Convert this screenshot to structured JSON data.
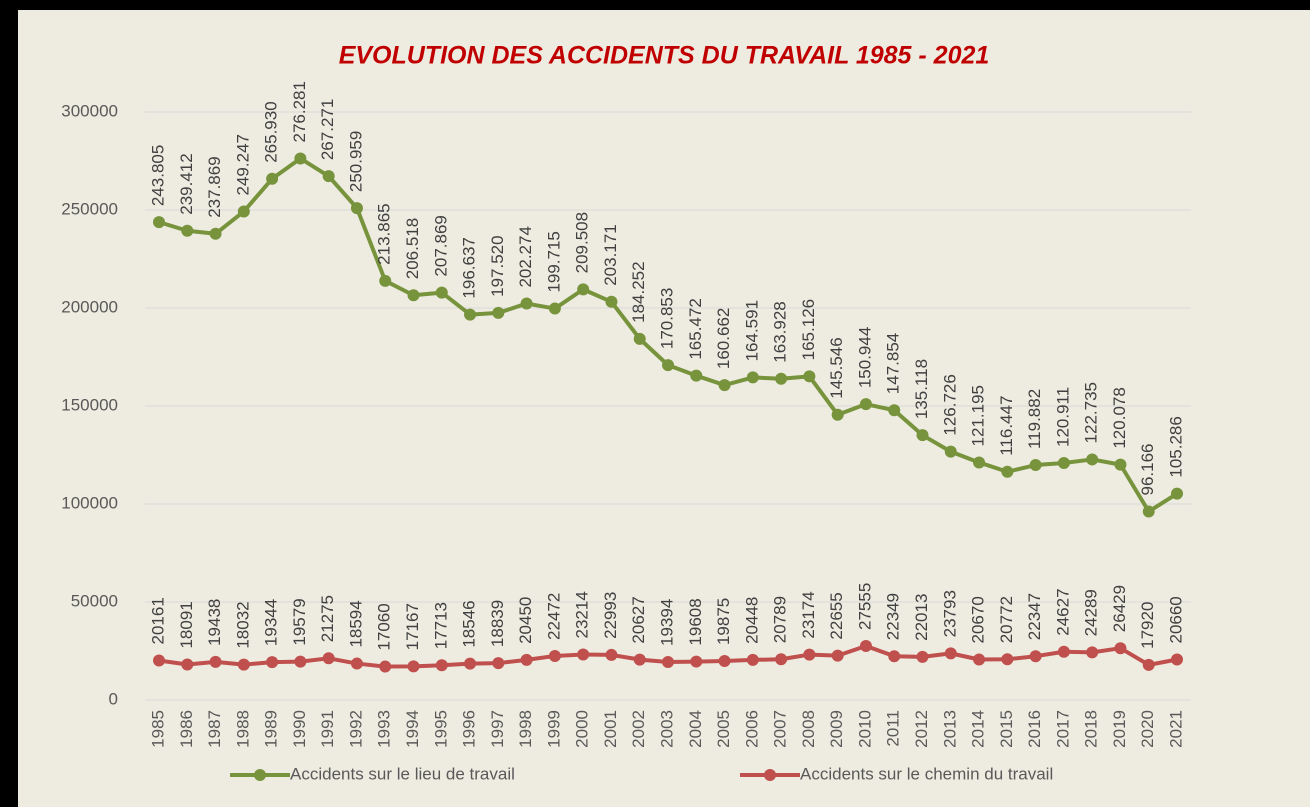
{
  "chart_data": {
    "type": "line",
    "title": "EVOLUTION DES ACCIDENTS DU TRAVAIL 1985 - 2021",
    "categories": [
      "1985",
      "1986",
      "1987",
      "1988",
      "1989",
      "1990",
      "1991",
      "1992",
      "1993",
      "1994",
      "1995",
      "1996",
      "1997",
      "1998",
      "1999",
      "2000",
      "2001",
      "2002",
      "2003",
      "2004",
      "2005",
      "2006",
      "2007",
      "2008",
      "2009",
      "2010",
      "2011",
      "2012",
      "2013",
      "2014",
      "2015",
      "2016",
      "2017",
      "2018",
      "2019",
      "2020",
      "2021"
    ],
    "series": [
      {
        "name": "Accidents sur le lieu de travail",
        "color": "#77933c",
        "values": [
          243805,
          239412,
          237869,
          249247,
          265930,
          276281,
          267271,
          250959,
          213865,
          206518,
          207869,
          196637,
          197520,
          202274,
          199715,
          209508,
          203171,
          184252,
          170853,
          165472,
          160662,
          164591,
          163928,
          165126,
          145546,
          150944,
          147854,
          135118,
          126726,
          121195,
          116447,
          119882,
          120911,
          122735,
          120078,
          96166,
          105286
        ],
        "value_labels": [
          "243.805",
          "239.412",
          "237.869",
          "249.247",
          "265.930",
          "276.281",
          "267.271",
          "250.959",
          "213.865",
          "206.518",
          "207.869",
          "196.637",
          "197.520",
          "202.274",
          "199.715",
          "209.508",
          "203.171",
          "184.252",
          "170.853",
          "165.472",
          "160.662",
          "164.591",
          "163.928",
          "165.126",
          "145.546",
          "150.944",
          "147.854",
          "135.118",
          "126.726",
          "121.195",
          "116.447",
          "119.882",
          "120.911",
          "122.735",
          "120.078",
          "96.166",
          "105.286"
        ]
      },
      {
        "name": "Accidents sur le chemin du travail",
        "color": "#c0504d",
        "values": [
          20161,
          18091,
          19438,
          18032,
          19344,
          19579,
          21275,
          18594,
          17060,
          17167,
          17713,
          18546,
          18839,
          20450,
          22472,
          23214,
          22993,
          20627,
          19394,
          19608,
          19875,
          20448,
          20789,
          23174,
          22655,
          27555,
          22349,
          22013,
          23793,
          20670,
          20772,
          22347,
          24627,
          24289,
          26429,
          17920,
          20660
        ]
      }
    ],
    "ylim": [
      0,
      300000
    ],
    "yticks": [
      0,
      50000,
      100000,
      150000,
      200000,
      250000,
      300000
    ],
    "grid": true,
    "legend": "bottom"
  }
}
